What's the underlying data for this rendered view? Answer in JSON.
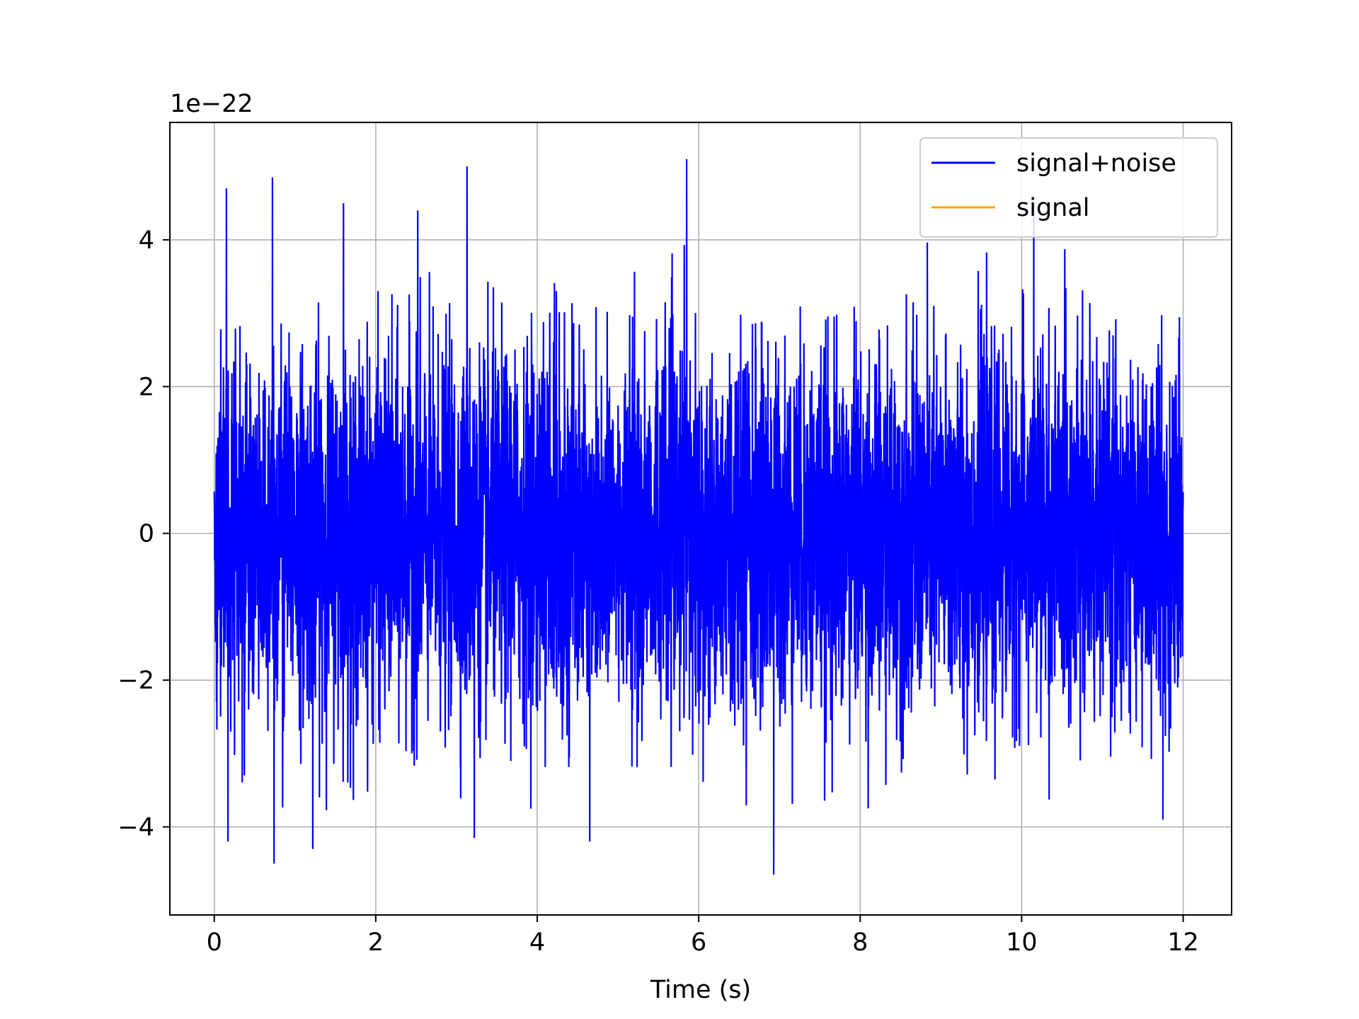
{
  "chart_data": {
    "type": "line",
    "title": "",
    "xlabel": "Time (s)",
    "ylabel": "",
    "y_scale_label": "1e−22",
    "xlim": [
      -0.55,
      12.6
    ],
    "ylim": [
      -5.2,
      5.6
    ],
    "x_ticks": [
      0,
      2,
      4,
      6,
      8,
      10,
      12
    ],
    "y_ticks": [
      -4,
      -2,
      0,
      2,
      4
    ],
    "y_tick_labels": [
      "−4",
      "−2",
      "0",
      "2",
      "4"
    ],
    "grid": true,
    "legend_position": "top-right",
    "series": [
      {
        "name": "signal+noise",
        "color": "#0000ff",
        "x_range": [
          0,
          12
        ],
        "y_min": -4.6,
        "y_max": 5.1,
        "approx_std": 1.2,
        "peaks": [
          {
            "x": 0.15,
            "y": 4.7
          },
          {
            "x": 0.72,
            "y": 4.85
          },
          {
            "x": 1.6,
            "y": 4.5
          },
          {
            "x": 2.52,
            "y": 4.4
          },
          {
            "x": 3.13,
            "y": 5.0
          },
          {
            "x": 5.85,
            "y": 5.1
          },
          {
            "x": 10.15,
            "y": 4.5
          },
          {
            "x": 0.17,
            "y": -4.2
          },
          {
            "x": 0.74,
            "y": -4.5
          },
          {
            "x": 1.22,
            "y": -4.3
          },
          {
            "x": 3.22,
            "y": -4.15
          },
          {
            "x": 4.65,
            "y": -4.2
          },
          {
            "x": 6.93,
            "y": -4.65
          },
          {
            "x": 11.75,
            "y": -3.9
          }
        ]
      },
      {
        "name": "signal",
        "color": "#ffa500",
        "values": []
      }
    ]
  }
}
